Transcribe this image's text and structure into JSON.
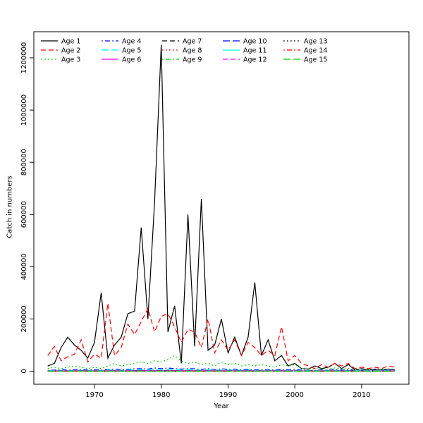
{
  "chart_data": {
    "type": "line",
    "title": "",
    "xlabel": "Year",
    "ylabel": "Catch in numbers",
    "xlim": [
      1963,
      2015
    ],
    "ylim": [
      0,
      1250000
    ],
    "xticks": [
      1970,
      1980,
      1990,
      2000,
      2010
    ],
    "yticks": [
      0,
      200000,
      400000,
      600000,
      800000,
      1000000,
      1200000
    ],
    "grid": false,
    "legend": {
      "position": "top-left",
      "columns": 5,
      "rows": 3
    },
    "years": [
      1963,
      1964,
      1965,
      1966,
      1967,
      1968,
      1969,
      1970,
      1971,
      1972,
      1973,
      1974,
      1975,
      1976,
      1977,
      1978,
      1979,
      1980,
      1981,
      1982,
      1983,
      1984,
      1985,
      1986,
      1987,
      1988,
      1989,
      1990,
      1991,
      1992,
      1993,
      1994,
      1995,
      1996,
      1997,
      1998,
      1999,
      2000,
      2001,
      2002,
      2003,
      2004,
      2005,
      2006,
      2007,
      2008,
      2009,
      2010,
      2011,
      2012,
      2013,
      2014,
      2015
    ],
    "series": [
      {
        "name": "Age 1",
        "color": "#000000",
        "linetype": "solid",
        "values": [
          20000,
          30000,
          90000,
          130000,
          100000,
          80000,
          50000,
          110000,
          300000,
          50000,
          100000,
          130000,
          220000,
          230000,
          550000,
          200000,
          650000,
          1250000,
          150000,
          250000,
          30000,
          600000,
          95000,
          660000,
          80000,
          100000,
          200000,
          70000,
          130000,
          60000,
          130000,
          340000,
          60000,
          120000,
          40000,
          60000,
          20000,
          30000,
          10000,
          8000,
          20000,
          10000,
          15000,
          30000,
          10000,
          25000,
          5000,
          10000,
          5000,
          8000,
          5000,
          8000,
          5000
        ]
      },
      {
        "name": "Age 2",
        "color": "#ff0000",
        "linetype": "dashed",
        "values": [
          60000,
          95000,
          40000,
          55000,
          65000,
          120000,
          35000,
          65000,
          50000,
          260000,
          60000,
          90000,
          180000,
          140000,
          190000,
          240000,
          150000,
          210000,
          220000,
          170000,
          110000,
          160000,
          150000,
          90000,
          200000,
          70000,
          120000,
          80000,
          120000,
          60000,
          110000,
          90000,
          60000,
          80000,
          60000,
          170000,
          40000,
          60000,
          30000,
          20000,
          10000,
          25000,
          15000,
          30000,
          20000,
          30000,
          10000,
          15000,
          10000,
          15000,
          10000,
          20000,
          15000
        ]
      },
      {
        "name": "Age 3",
        "color": "#00cd00",
        "linetype": "dotted",
        "values": [
          10000,
          15000,
          10000,
          15000,
          20000,
          15000,
          10000,
          15000,
          10000,
          20000,
          30000,
          20000,
          25000,
          30000,
          35000,
          30000,
          40000,
          35000,
          45000,
          60000,
          40000,
          30000,
          35000,
          25000,
          30000,
          20000,
          35000,
          25000,
          30000,
          20000,
          25000,
          20000,
          25000,
          20000,
          15000,
          25000,
          20000,
          25000,
          10000,
          10000,
          8000,
          10000,
          8000,
          12000,
          8000,
          10000,
          5000,
          8000,
          5000,
          8000,
          5000,
          8000,
          5000
        ]
      },
      {
        "name": "Age 4",
        "color": "#0000ff",
        "linetype": "dashdot",
        "values": [
          3000,
          4000,
          5000,
          4000,
          5000,
          6000,
          4000,
          5000,
          4000,
          6000,
          8000,
          6000,
          7000,
          9000,
          10000,
          8000,
          12000,
          10000,
          12000,
          10000,
          8000,
          10000,
          9000,
          7000,
          10000,
          6000,
          9000,
          7000,
          8000,
          6000,
          7000,
          6000,
          5000,
          6000,
          4000,
          8000,
          5000,
          7000,
          4000,
          3000,
          3000,
          5000,
          4000,
          6000,
          4000,
          5000,
          3000,
          4000,
          3000,
          4000,
          3000,
          5000,
          4000
        ]
      },
      {
        "name": "Age 5",
        "color": "#00ffff",
        "linetype": "longdash",
        "values": [
          2000,
          2500,
          3000,
          2500,
          3000,
          3500,
          2500,
          3000,
          2500,
          3500,
          4500,
          3500,
          4000,
          5000,
          5500,
          4500,
          6000,
          5000,
          6000,
          5000,
          4500,
          5000,
          4500,
          4000,
          5000,
          3500,
          4500,
          4000,
          4500,
          3500,
          4000,
          3500,
          3000,
          3500,
          2500,
          4000,
          3000,
          3500,
          2500,
          2000,
          2000,
          3000,
          2500,
          3500,
          2500,
          3000,
          2000,
          2500,
          2000,
          2500,
          2000,
          3000,
          2500
        ]
      },
      {
        "name": "Age 6",
        "color": "#ff00ff",
        "linetype": "solid",
        "values": [
          1000,
          1200,
          1500,
          1200,
          1500,
          1800,
          1200,
          1500,
          1200,
          1800,
          2200,
          1800,
          2000,
          2500,
          2800,
          2200,
          3000,
          2500,
          3000,
          2500,
          2200,
          2500,
          2200,
          2000,
          2500,
          1800,
          2200,
          2000,
          2200,
          1800,
          2000,
          1800,
          1500,
          1800,
          1200,
          2000,
          1500,
          1800,
          1200,
          1000,
          1000,
          1500,
          1200,
          1800,
          1200,
          1500,
          1000,
          1200,
          1000,
          1200,
          1000,
          1500,
          1200
        ]
      },
      {
        "name": "Age 7",
        "color": "#000000",
        "linetype": "dashed",
        "values": [
          500,
          600,
          700,
          600,
          700,
          900,
          600,
          700,
          600,
          900,
          1100,
          900,
          1000,
          1200,
          1400,
          1100,
          1500,
          1200,
          1500,
          1200,
          1100,
          1200,
          1100,
          1000,
          1200,
          900,
          1100,
          1000,
          1100,
          900,
          1000,
          900,
          700,
          900,
          600,
          1000,
          700,
          900,
          600,
          500,
          500,
          700,
          600,
          900,
          600,
          700,
          500,
          600,
          500,
          600,
          500,
          700,
          600
        ]
      },
      {
        "name": "Age 8",
        "color": "#ff0000",
        "linetype": "dotted",
        "values": [
          300,
          350,
          400,
          350,
          400,
          500,
          350,
          400,
          350,
          500,
          600,
          500,
          550,
          700,
          800,
          600,
          800,
          700,
          800,
          700,
          600,
          700,
          600,
          550,
          700,
          500,
          600,
          550,
          600,
          500,
          550,
          500,
          400,
          500,
          350,
          550,
          400,
          500,
          350,
          300,
          300,
          400,
          350,
          500,
          350,
          400,
          300,
          350,
          300,
          350,
          300,
          400,
          350
        ]
      },
      {
        "name": "Age 9",
        "color": "#00cd00",
        "linetype": "dashdot",
        "values": [
          150,
          180,
          200,
          180,
          200,
          250,
          180,
          200,
          180,
          250,
          300,
          250,
          280,
          350,
          400,
          300,
          400,
          350,
          400,
          350,
          300,
          350,
          300,
          280,
          350,
          250,
          300,
          280,
          300,
          250,
          280,
          250,
          200,
          250,
          180,
          280,
          200,
          250,
          180,
          150,
          150,
          200,
          180,
          250,
          180,
          200,
          150,
          180,
          150,
          180,
          150,
          200,
          180
        ]
      },
      {
        "name": "Age 10",
        "color": "#0000ff",
        "linetype": "longdash",
        "values": [
          80,
          90,
          100,
          90,
          100,
          130,
          90,
          100,
          90,
          130,
          150,
          130,
          140,
          180,
          200,
          150,
          200,
          180,
          200,
          180,
          150,
          180,
          150,
          140,
          180,
          130,
          150,
          140,
          150,
          130,
          140,
          130,
          100,
          130,
          90,
          140,
          100,
          130,
          90,
          80,
          80,
          100,
          90,
          130,
          90,
          100,
          80,
          90,
          80,
          90,
          80,
          100,
          90
        ]
      },
      {
        "name": "Age 11",
        "color": "#00ffff",
        "linetype": "solid",
        "values": [
          40,
          45,
          50,
          45,
          50,
          65,
          45,
          50,
          45,
          65,
          75,
          65,
          70,
          90,
          100,
          75,
          100,
          90,
          100,
          90,
          75,
          90,
          75,
          70,
          90,
          65,
          75,
          70,
          75,
          65,
          70,
          65,
          50,
          65,
          45,
          70,
          50,
          65,
          45,
          40,
          40,
          50,
          45,
          65,
          45,
          50,
          40,
          45,
          40,
          45,
          40,
          50,
          45
        ]
      },
      {
        "name": "Age 12",
        "color": "#ff00ff",
        "linetype": "dashed",
        "values": [
          20,
          22,
          25,
          22,
          25,
          32,
          22,
          25,
          22,
          32,
          38,
          32,
          35,
          45,
          50,
          38,
          50,
          45,
          50,
          45,
          38,
          45,
          38,
          35,
          45,
          32,
          38,
          35,
          38,
          32,
          35,
          32,
          25,
          32,
          22,
          35,
          25,
          32,
          22,
          20,
          20,
          25,
          22,
          32,
          22,
          25,
          20,
          22,
          20,
          22,
          20,
          25,
          22
        ]
      },
      {
        "name": "Age 13",
        "color": "#000000",
        "linetype": "dotted",
        "values": [
          10,
          11,
          12,
          11,
          12,
          16,
          11,
          12,
          11,
          16,
          19,
          16,
          17,
          22,
          25,
          19,
          25,
          22,
          25,
          22,
          19,
          22,
          19,
          17,
          22,
          16,
          19,
          17,
          19,
          16,
          17,
          16,
          12,
          16,
          11,
          17,
          12,
          16,
          11,
          10,
          10,
          12,
          11,
          16,
          11,
          12,
          10,
          11,
          10,
          11,
          10,
          12,
          11
        ]
      },
      {
        "name": "Age 14",
        "color": "#ff0000",
        "linetype": "dashdot",
        "values": [
          5,
          6,
          6,
          6,
          6,
          8,
          6,
          6,
          6,
          8,
          9,
          8,
          9,
          11,
          12,
          9,
          12,
          11,
          12,
          11,
          9,
          11,
          9,
          9,
          11,
          8,
          9,
          9,
          9,
          8,
          9,
          8,
          6,
          8,
          6,
          9,
          6,
          8,
          6,
          5,
          5,
          6,
          6,
          8,
          6,
          6,
          5,
          6,
          5,
          6,
          5,
          6,
          6
        ]
      },
      {
        "name": "Age 15",
        "color": "#00cd00",
        "linetype": "longdash",
        "values": [
          2,
          3,
          3,
          3,
          3,
          4,
          3,
          3,
          3,
          4,
          5,
          4,
          4,
          5,
          6,
          5,
          6,
          5,
          6,
          5,
          5,
          5,
          5,
          4,
          5,
          4,
          5,
          4,
          5,
          4,
          4,
          4,
          3,
          4,
          3,
          4,
          3,
          4,
          3,
          2,
          2,
          3,
          3,
          4,
          3,
          3,
          2,
          3,
          2,
          3,
          2,
          3,
          3
        ]
      }
    ]
  }
}
